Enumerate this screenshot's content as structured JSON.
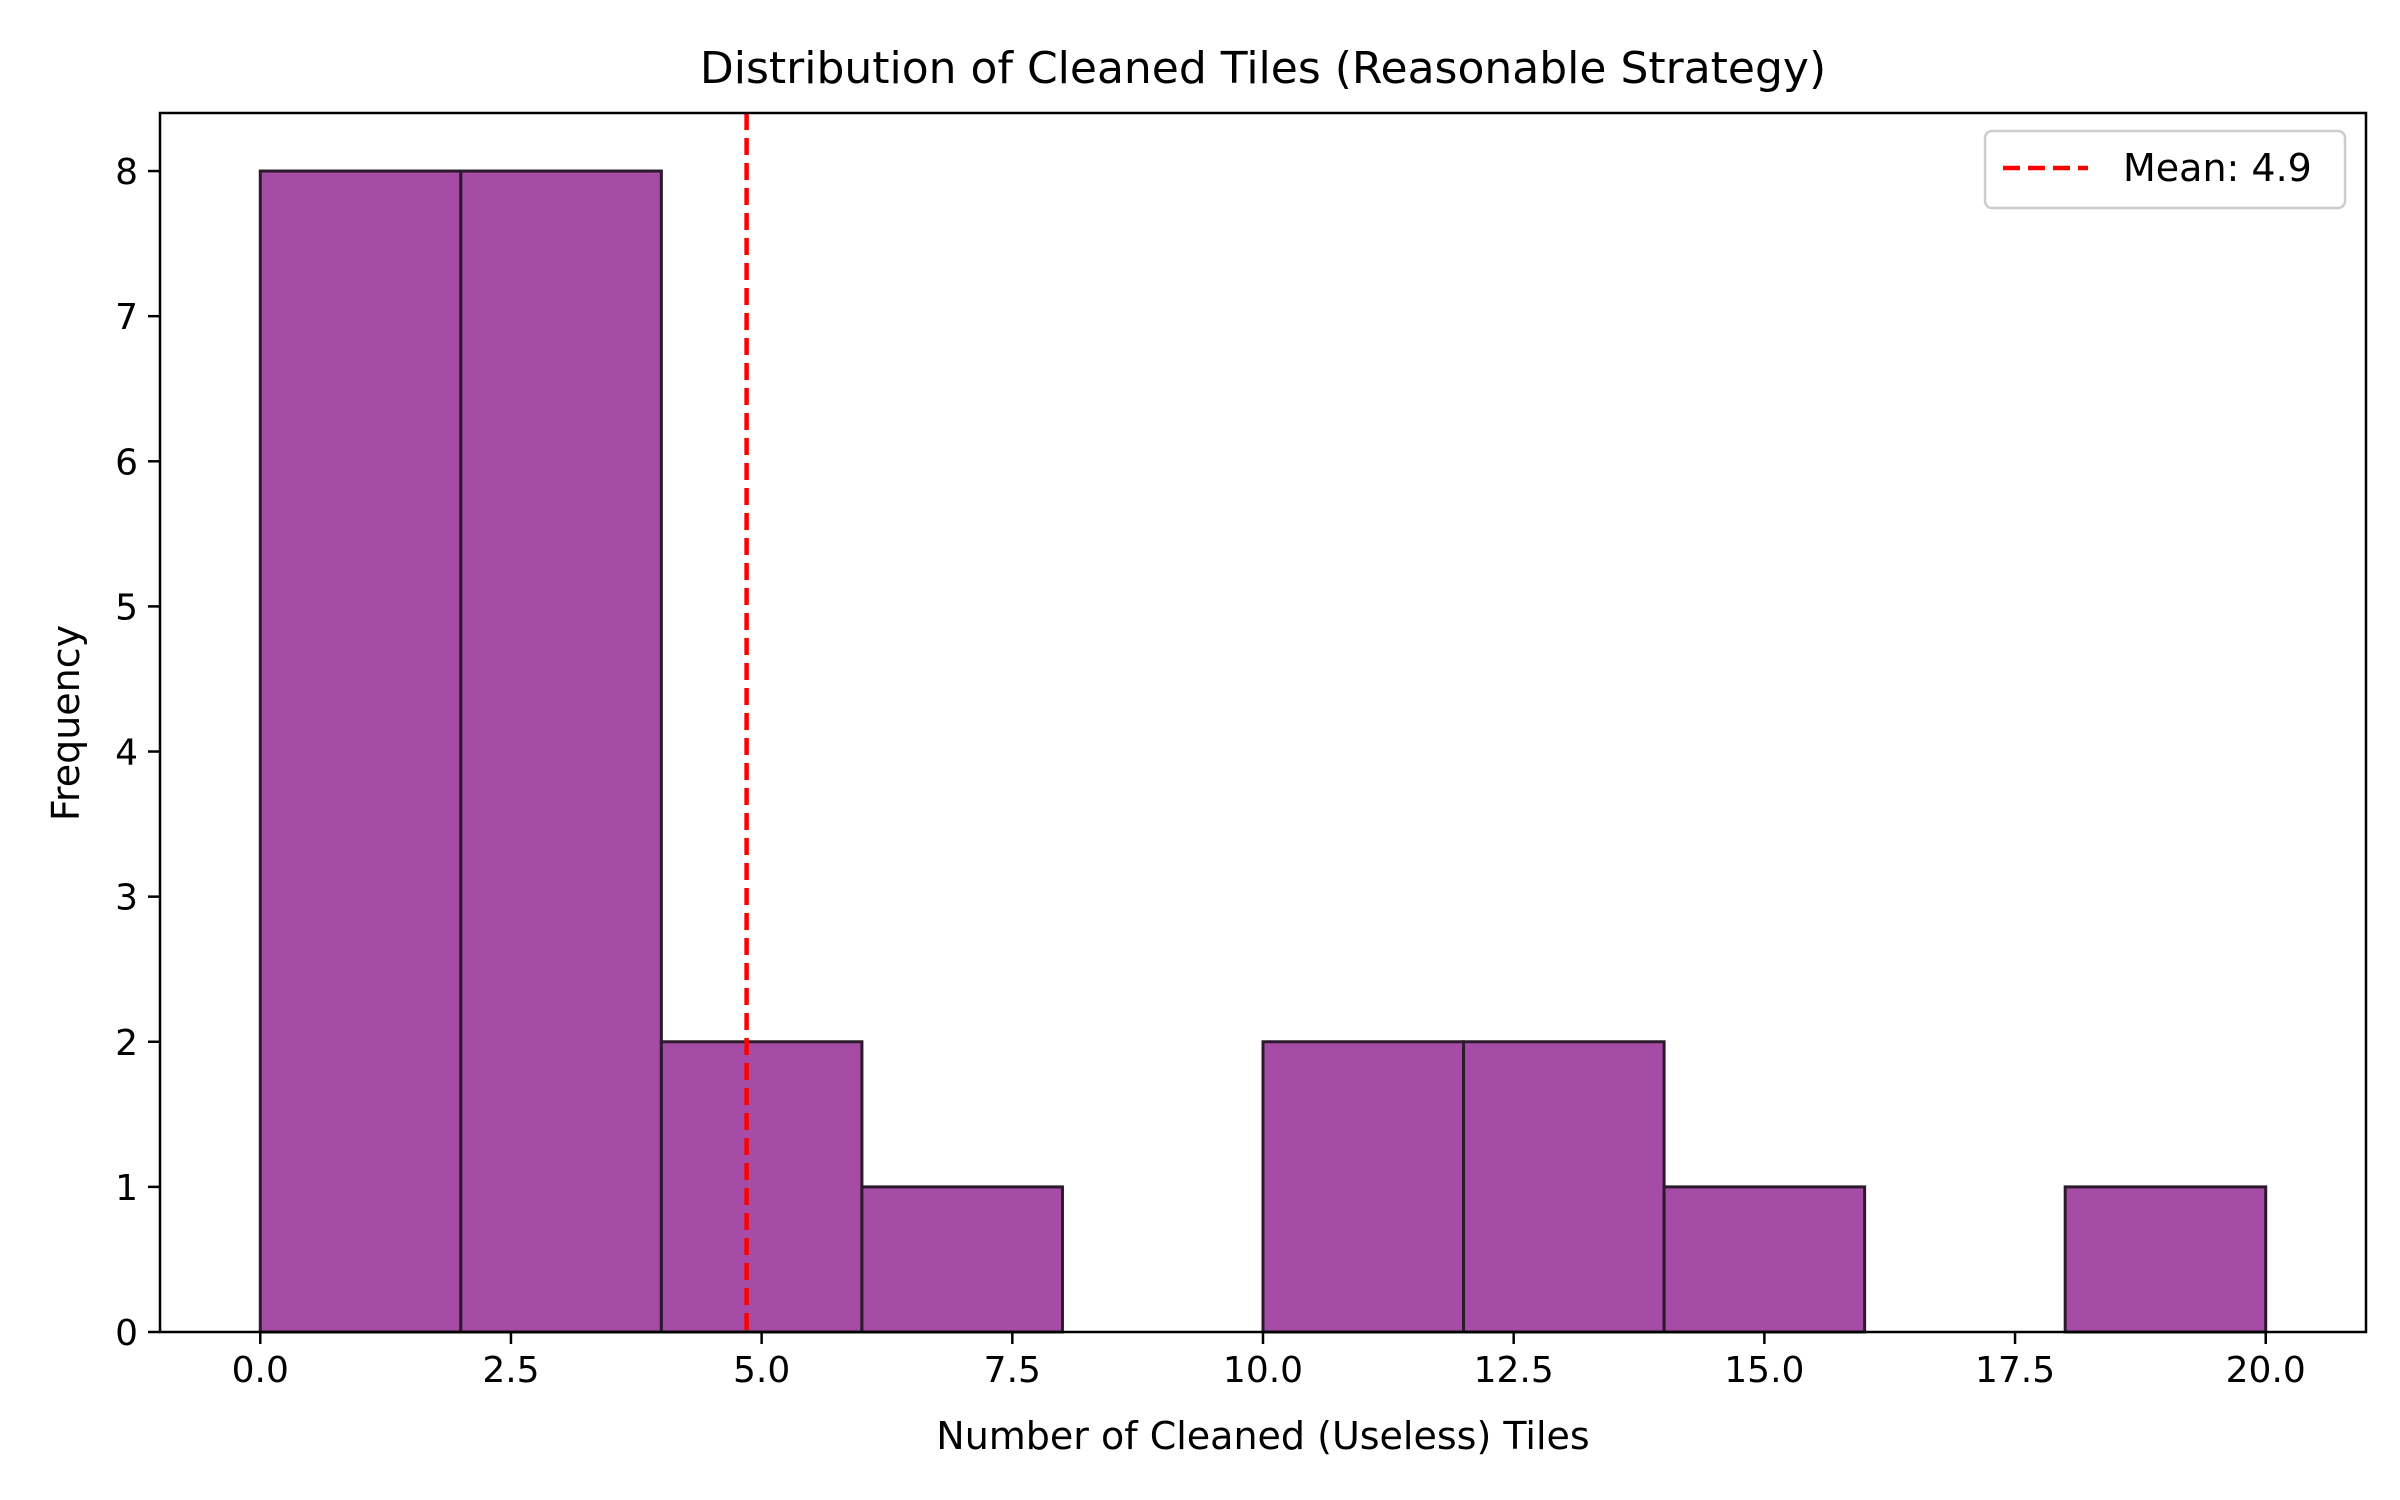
{
  "chart_data": {
    "type": "bar",
    "title": "Distribution of Cleaned Tiles (Reasonable Strategy)",
    "xlabel": "Number of Cleaned (Useless) Tiles",
    "ylabel": "Frequency",
    "xlim": [
      -1,
      21
    ],
    "ylim": [
      0,
      8.4
    ],
    "bins": [
      {
        "x0": 0,
        "x1": 2,
        "count": 8
      },
      {
        "x0": 2,
        "x1": 4,
        "count": 8
      },
      {
        "x0": 4,
        "x1": 6,
        "count": 2
      },
      {
        "x0": 6,
        "x1": 8,
        "count": 1
      },
      {
        "x0": 8,
        "x1": 10,
        "count": 0
      },
      {
        "x0": 10,
        "x1": 12,
        "count": 2
      },
      {
        "x0": 12,
        "x1": 14,
        "count": 2
      },
      {
        "x0": 14,
        "x1": 16,
        "count": 1
      },
      {
        "x0": 16,
        "x1": 18,
        "count": 0
      },
      {
        "x0": 18,
        "x1": 20,
        "count": 1
      }
    ],
    "x_ticks": [
      0,
      2.5,
      5,
      7.5,
      10,
      12.5,
      15,
      17.5,
      20
    ],
    "x_tick_labels": [
      "0.0",
      "2.5",
      "5.0",
      "7.5",
      "10.0",
      "12.5",
      "15.0",
      "17.5",
      "20.0"
    ],
    "y_ticks": [
      0,
      1,
      2,
      3,
      4,
      5,
      6,
      7,
      8
    ],
    "y_tick_labels": [
      "0",
      "1",
      "2",
      "3",
      "4",
      "5",
      "6",
      "7",
      "8"
    ],
    "mean_line": {
      "value": 4.85,
      "label": "Mean: 4.9",
      "color": "#ff0000",
      "style": "dashed"
    },
    "bar_color": "#a64ca6",
    "edge_color": "#2a1a2a",
    "grid": false,
    "legend_position": "top-right"
  }
}
